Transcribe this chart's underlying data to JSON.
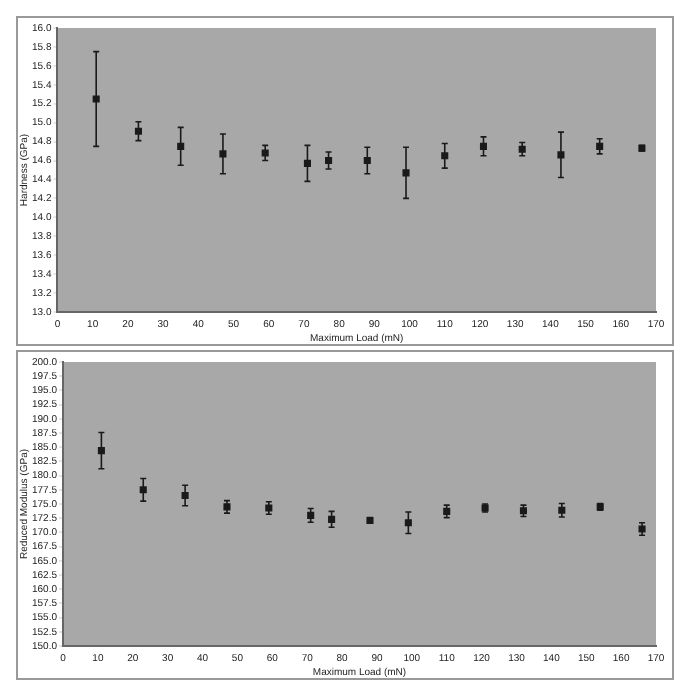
{
  "chart_data": [
    {
      "type": "scatter",
      "xlabel": "Maximum Load (mN)",
      "ylabel": "Hardness (GPa)",
      "marker": "square",
      "color": "#1a1a1a",
      "x": [
        11,
        23,
        35,
        47,
        59,
        71,
        77,
        88,
        99,
        110,
        121,
        132,
        143,
        154,
        166
      ],
      "values": [
        15.25,
        14.91,
        14.75,
        14.67,
        14.68,
        14.57,
        14.6,
        14.6,
        14.47,
        14.65,
        14.75,
        14.72,
        14.66,
        14.75,
        14.73
      ],
      "errors": [
        0.5,
        0.1,
        0.2,
        0.21,
        0.08,
        0.19,
        0.09,
        0.14,
        0.27,
        0.13,
        0.1,
        0.07,
        0.24,
        0.08,
        0.03
      ],
      "xlim": [
        0,
        170
      ],
      "xticks": [
        0,
        10,
        20,
        30,
        40,
        50,
        60,
        70,
        80,
        90,
        100,
        110,
        120,
        130,
        140,
        150,
        160,
        170
      ],
      "ylim": [
        13,
        16
      ],
      "yticks": [
        {
          "value": 13,
          "label": "13.0"
        },
        {
          "value": 13.2,
          "label": "13.2"
        },
        {
          "value": 13.4,
          "label": "13.4"
        },
        {
          "value": 13.6,
          "label": "13.6"
        },
        {
          "value": 13.8,
          "label": "13.8"
        },
        {
          "value": 14,
          "label": "14.0"
        },
        {
          "value": 14.2,
          "label": "14.2"
        },
        {
          "value": 14.4,
          "label": "14.4"
        },
        {
          "value": 14.6,
          "label": "14.6"
        },
        {
          "value": 14.8,
          "label": "14.8"
        },
        {
          "value": 15,
          "label": "15.0"
        },
        {
          "value": 15.2,
          "label": "15.2"
        },
        {
          "value": 15.4,
          "label": "15.4"
        },
        {
          "value": 15.6,
          "label": "15.6"
        },
        {
          "value": 15.8,
          "label": "15.8"
        },
        {
          "value": 16,
          "label": "16.0"
        }
      ]
    },
    {
      "type": "scatter",
      "xlabel": "Maximum Load (mN)",
      "ylabel": "Reduced Modulus (GPa)",
      "marker": "square",
      "color": "#1a1a1a",
      "x": [
        11,
        23,
        35,
        47,
        59,
        71,
        77,
        88,
        99,
        110,
        121,
        132,
        143,
        154,
        166
      ],
      "values": [
        184.4,
        177.5,
        176.5,
        174.5,
        174.3,
        173.0,
        172.3,
        172.1,
        171.7,
        173.7,
        174.3,
        173.8,
        173.9,
        174.5,
        170.6
      ],
      "errors": [
        3.2,
        2,
        1.8,
        1.1,
        1.1,
        1.2,
        1.4,
        0.5,
        1.9,
        1.1,
        0.7,
        1,
        1.2,
        0.6,
        1.1
      ],
      "xlim": [
        0,
        170
      ],
      "xticks": [
        0,
        10,
        20,
        30,
        40,
        50,
        60,
        70,
        80,
        90,
        100,
        110,
        120,
        130,
        140,
        150,
        160,
        170
      ],
      "ylim": [
        150,
        200
      ],
      "yticks": [
        {
          "value": 150,
          "label": "150.0"
        },
        {
          "value": 152.5,
          "label": "152.5"
        },
        {
          "value": 155,
          "label": "155.0"
        },
        {
          "value": 157.5,
          "label": "157.5"
        },
        {
          "value": 160,
          "label": "160.0"
        },
        {
          "value": 162.5,
          "label": "162.5"
        },
        {
          "value": 165,
          "label": "165.0"
        },
        {
          "value": 167.5,
          "label": "167.5"
        },
        {
          "value": 170,
          "label": "170.0"
        },
        {
          "value": 172.5,
          "label": "172.5"
        },
        {
          "value": 175,
          "label": "175.0"
        },
        {
          "value": 177.5,
          "label": "177.5"
        },
        {
          "value": 180,
          "label": "180.0"
        },
        {
          "value": 182.5,
          "label": "182.5"
        },
        {
          "value": 185,
          "label": "185.0"
        },
        {
          "value": 187.5,
          "label": "187.5"
        },
        {
          "value": 190,
          "label": "190.0"
        },
        {
          "value": 192.5,
          "label": "192.5"
        },
        {
          "value": 195,
          "label": "195.0"
        },
        {
          "value": 197.5,
          "label": "197.5"
        },
        {
          "value": 200,
          "label": "200.0"
        }
      ]
    }
  ]
}
